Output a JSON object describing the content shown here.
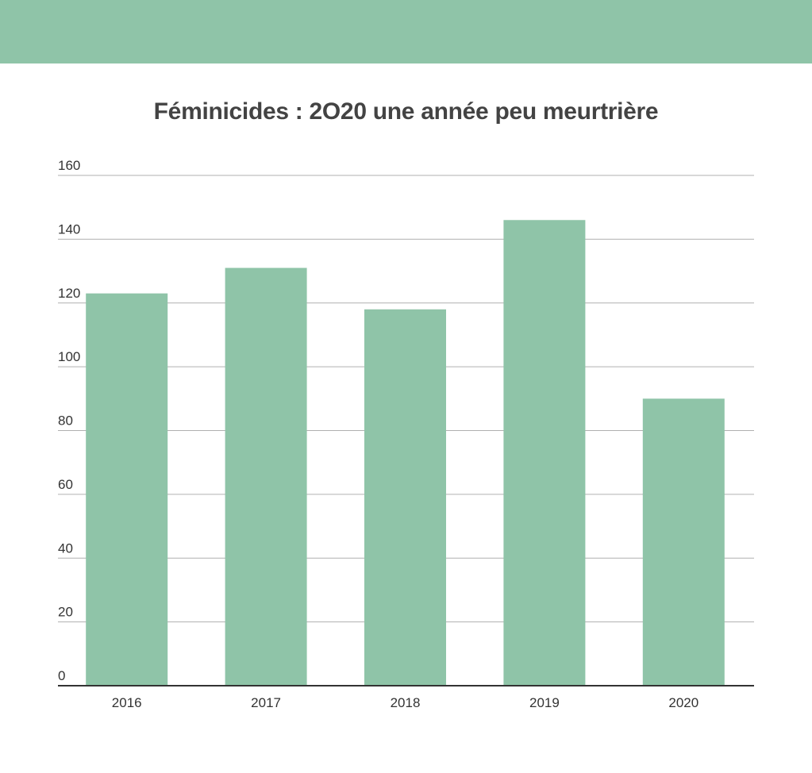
{
  "header": {
    "band_color": "#8fc4a8"
  },
  "chart_data": {
    "type": "bar",
    "title": "Féminicides : 2O20 une année peu meurtrière",
    "xlabel": "",
    "ylabel": "",
    "categories": [
      "2016",
      "2017",
      "2018",
      "2019",
      "2020"
    ],
    "values": [
      123,
      131,
      118,
      146,
      90
    ],
    "ylim": [
      0,
      160
    ],
    "yticks": [
      "0",
      "20",
      "40",
      "60",
      "80",
      "100",
      "120",
      "140",
      "160"
    ],
    "grid": true,
    "legend": "none",
    "colors": {
      "bar": "#8fc4a8",
      "grid": "#b0b0b0",
      "axis": "#333333",
      "text": "#333333",
      "title": "#434343"
    }
  }
}
